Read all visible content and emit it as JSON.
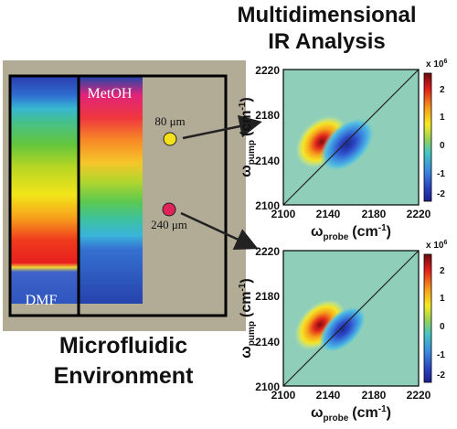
{
  "titles": {
    "right_line1": "Multidimensional",
    "right_line2": "IR Analysis",
    "left_line1": "Microfluidic",
    "left_line2": "Environment"
  },
  "device": {
    "label_top": "MetOH",
    "label_bottom": "DMF",
    "point_1": {
      "label": "80 μm",
      "color": "#f5e11a"
    },
    "point_2": {
      "label": "240 μm",
      "color": "#e0245a"
    }
  },
  "plots": [
    {
      "x_ticks": [
        "2100",
        "2140",
        "2180",
        "2220"
      ],
      "y_ticks": [
        "2220",
        "2180",
        "2140",
        "2100"
      ],
      "colorbar_exponent": "x 10",
      "colorbar_exp_sup": "6",
      "colorbar_ticks": [
        "2",
        "1",
        "0",
        "-1",
        "-2"
      ],
      "x_label_main": "ω",
      "x_label_sub": "probe",
      "x_label_unit": "(cm",
      "x_label_unit_sup": "-1",
      "x_label_close": ")",
      "y_label_main": "ω",
      "y_label_sub": "pump",
      "y_label_unit": "(cm",
      "y_label_unit_sup": "-1",
      "y_label_close": ")"
    },
    {
      "x_ticks": [
        "2100",
        "2140",
        "2180",
        "2220"
      ],
      "y_ticks": [
        "2220",
        "2180",
        "2140",
        "2100"
      ],
      "colorbar_exponent": "x 10",
      "colorbar_exp_sup": "6",
      "colorbar_ticks": [
        "2",
        "1",
        "0",
        "-1",
        "-2"
      ],
      "x_label_main": "ω",
      "x_label_sub": "probe",
      "x_label_unit": "(cm",
      "x_label_unit_sup": "-1",
      "x_label_close": ")",
      "y_label_main": "ω",
      "y_label_sub": "pump",
      "y_label_unit": "(cm",
      "y_label_unit_sup": "-1",
      "y_label_close": ")"
    }
  ],
  "colors": {
    "device_background": "#b2ac97",
    "frame": "#000000",
    "plot_background": "#8fcfb9",
    "arrow": "#222222"
  }
}
